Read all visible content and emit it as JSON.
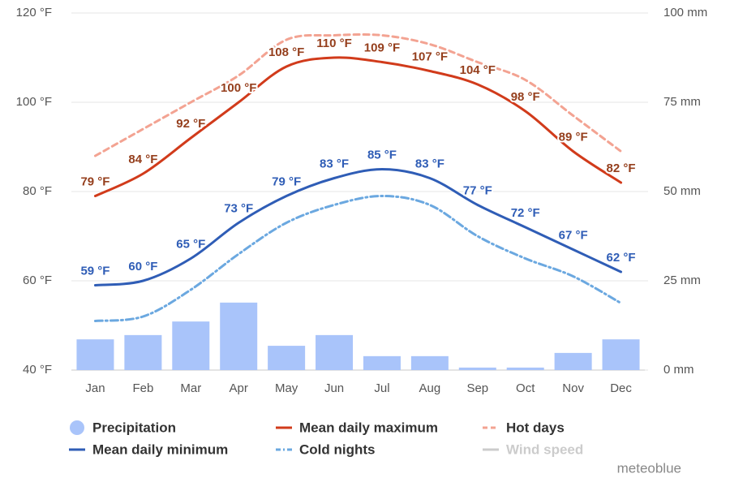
{
  "chart_data": {
    "type": "combo",
    "categories": [
      "Jan",
      "Feb",
      "Mar",
      "Apr",
      "May",
      "Jun",
      "Jul",
      "Aug",
      "Sep",
      "Oct",
      "Nov",
      "Dec"
    ],
    "ylim": [
      40,
      120
    ],
    "yticks": [
      {
        "value": 40,
        "label": "40 °F"
      },
      {
        "value": 60,
        "label": "60 °F"
      },
      {
        "value": 80,
        "label": "80 °F"
      },
      {
        "value": 100,
        "label": "100 °F"
      },
      {
        "value": 120,
        "label": "120 °F"
      }
    ],
    "y2lim": [
      0,
      100
    ],
    "y2ticks": [
      {
        "value": 0,
        "label": "0 mm"
      },
      {
        "value": 25,
        "label": "25 mm"
      },
      {
        "value": 50,
        "label": "50 mm"
      },
      {
        "value": 75,
        "label": "75 mm"
      },
      {
        "value": 100,
        "label": "100 mm"
      }
    ],
    "grid": true,
    "series": [
      {
        "name": "Precipitation",
        "type": "bar",
        "axis": "y2",
        "color": "#a9c4fa",
        "values": [
          8.6,
          9.8,
          13.6,
          18.9,
          6.8,
          9.8,
          3.9,
          3.9,
          0.7,
          0.7,
          4.8,
          8.6
        ]
      },
      {
        "name": "Mean daily maximum",
        "type": "line",
        "color": "#d13b1b",
        "label_color": "#953f1d",
        "values": [
          79,
          84,
          92,
          100,
          108,
          110,
          109,
          107,
          104,
          98,
          89,
          82
        ],
        "value_labels": [
          "79 °F",
          "84 °F",
          "92 °F",
          "100 °F",
          "108 °F",
          "110 °F",
          "109 °F",
          "107 °F",
          "104 °F",
          "98 °F",
          "89 °F",
          "82 °F"
        ]
      },
      {
        "name": "Hot days",
        "type": "line",
        "dash": "dash",
        "color": "#f3a392",
        "values": [
          88,
          94,
          100,
          106,
          114,
          115,
          115,
          113,
          109,
          105,
          97,
          89
        ]
      },
      {
        "name": "Mean daily minimum",
        "type": "line",
        "color": "#2f5db6",
        "label_color": "#2f5db6",
        "values": [
          59,
          60,
          65,
          73,
          79,
          83,
          85,
          83,
          77,
          72,
          67,
          62
        ],
        "value_labels": [
          "59 °F",
          "60 °F",
          "65 °F",
          "73 °F",
          "79 °F",
          "83 °F",
          "85 °F",
          "83 °F",
          "77 °F",
          "72 °F",
          "67 °F",
          "62 °F"
        ]
      },
      {
        "name": "Cold nights",
        "type": "line",
        "dash": "dashdot",
        "color": "#6ba8e0",
        "values": [
          51,
          52,
          58,
          66,
          73,
          77,
          79,
          77,
          70,
          65,
          61,
          55
        ]
      },
      {
        "name": "Wind speed",
        "type": "line",
        "color": "#cccccc",
        "values": [
          null,
          null,
          null,
          null,
          null,
          null,
          null,
          null,
          null,
          null,
          null,
          null
        ]
      }
    ],
    "attribution": "meteoblue"
  }
}
